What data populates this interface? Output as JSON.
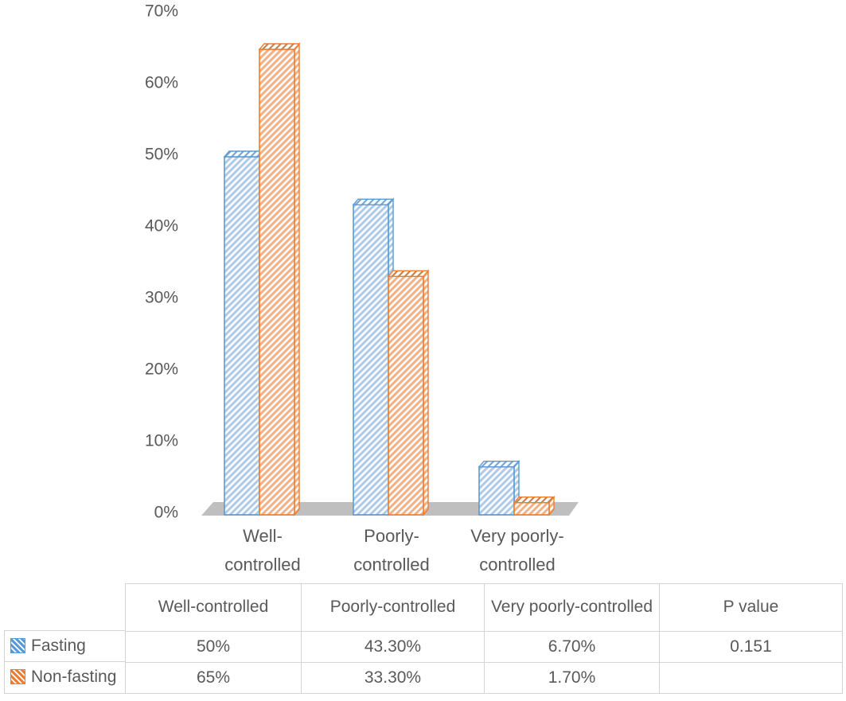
{
  "chart_data": {
    "type": "bar",
    "effect": "3d-clustered",
    "pattern": "diagonal-hatch",
    "grid": false,
    "title": "",
    "xlabel": "",
    "ylabel": "",
    "categories": [
      "Well-controlled",
      "Poorly-controlled",
      "Very poorly-controlled"
    ],
    "category_tick_lines": [
      [
        "Well-",
        "controlled"
      ],
      [
        "Poorly-",
        "controlled"
      ],
      [
        "Very poorly-",
        "controlled"
      ]
    ],
    "series": [
      {
        "name": "Fasting",
        "values": [
          50,
          43.3,
          6.7
        ],
        "color": "#5B9BD5",
        "stripe_color": "#AECBEA",
        "top_color": "#7FA6CC"
      },
      {
        "name": "Non-fasting",
        "values": [
          65,
          33.3,
          1.7
        ],
        "color": "#ED7D31",
        "stripe_color": "#F4B183",
        "top_color": "#C08552"
      }
    ],
    "ylim": [
      0,
      70
    ],
    "ytick_step": 10,
    "ytick_labels": [
      "0%",
      "10%",
      "20%",
      "30%",
      "40%",
      "50%",
      "60%",
      "70%"
    ],
    "legend_position": "table-row-headers",
    "floor_color": "#BFBFBF",
    "text_color": "#595959"
  },
  "table": {
    "col_headers": [
      "Well-controlled",
      "Poorly-controlled",
      "Very poorly-controlled",
      "P value"
    ],
    "rows": [
      {
        "label": "Fasting",
        "values": [
          "50%",
          "43.30%",
          "6.70%",
          "0.151"
        ]
      },
      {
        "label": "Non-fasting",
        "values": [
          "65%",
          "33.30%",
          "1.70%",
          ""
        ]
      }
    ],
    "border_color": "#D4D4D4"
  }
}
